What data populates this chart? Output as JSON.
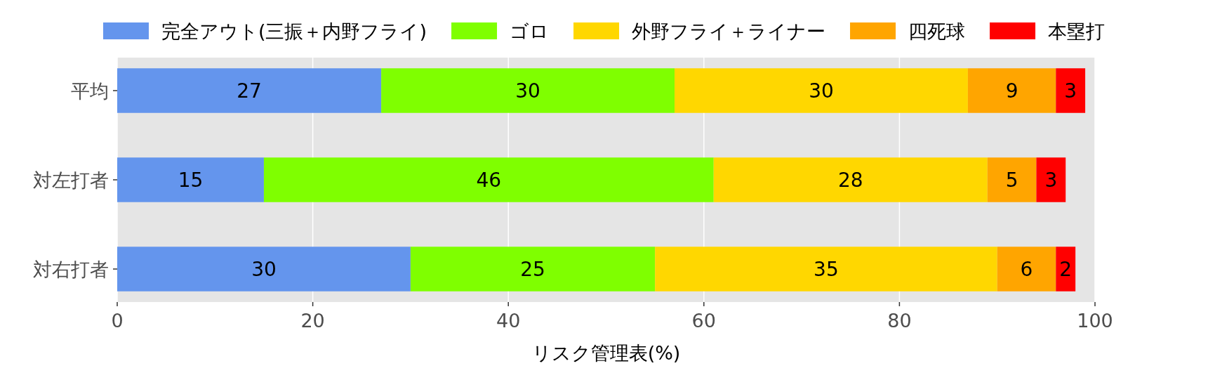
{
  "chart_data": {
    "type": "bar",
    "orientation": "horizontal",
    "stacked": true,
    "categories": [
      "平均",
      "対左打者",
      "対右打者"
    ],
    "series": [
      {
        "name": "完全アウト(三振＋内野フライ)",
        "color": "#6495ed",
        "values": [
          27,
          15,
          30
        ]
      },
      {
        "name": "ゴロ",
        "color": "#7fff00",
        "values": [
          30,
          46,
          25
        ]
      },
      {
        "name": "外野フライ＋ライナー",
        "color": "#ffd700",
        "values": [
          30,
          28,
          35
        ]
      },
      {
        "name": "四死球",
        "color": "#ffa500",
        "values": [
          9,
          5,
          6
        ]
      },
      {
        "name": "本塁打",
        "color": "#ff0000",
        "values": [
          3,
          3,
          2
        ]
      }
    ],
    "xlim": [
      0,
      100
    ],
    "xticks": [
      0,
      20,
      40,
      60,
      80,
      100
    ],
    "xlabel": "リスク管理表(%)",
    "grid": "x",
    "legend": "top",
    "data_labels": true
  }
}
